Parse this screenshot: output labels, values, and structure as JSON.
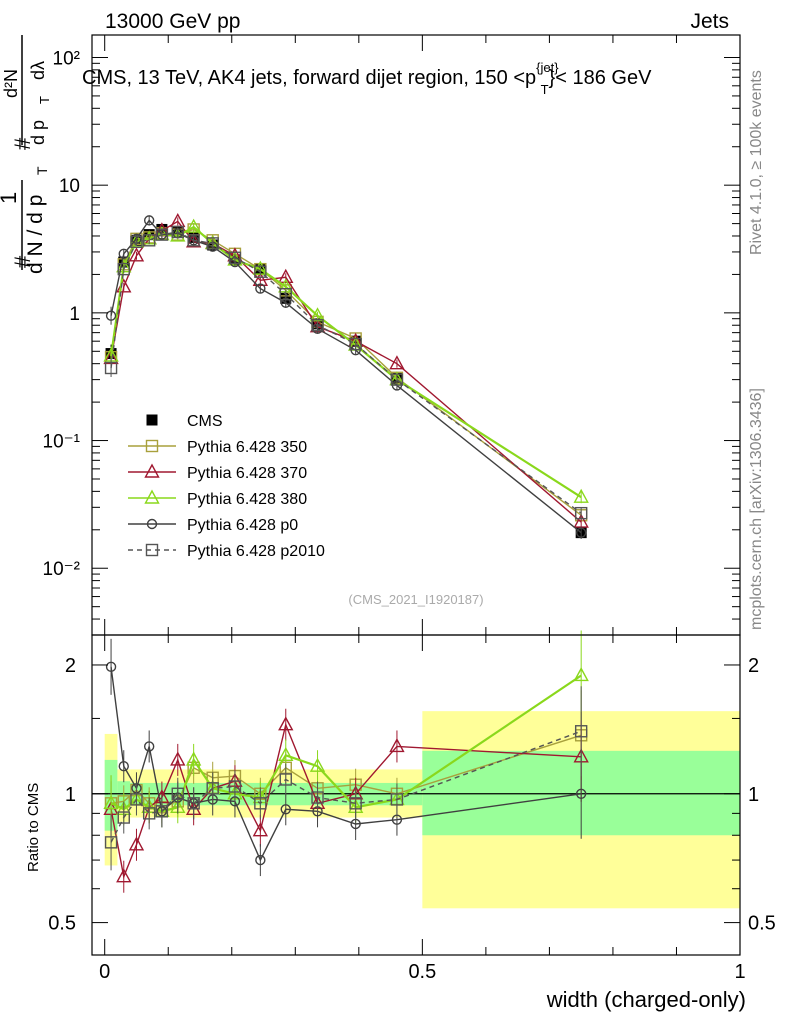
{
  "header": {
    "left": "13000 GeV pp",
    "right": "Jets",
    "title": "CMS, 13 TeV, AK4 jets, forward dijet region, 150 <p",
    "title_sup": "{jet}",
    "title_sub": "T",
    "title_end": "}< 186 GeV"
  },
  "side": {
    "rivet": "Rivet 4.1.0, ≥ 100k events",
    "mcplots": "mcplots.cern.ch [arXiv:1306.3436]"
  },
  "watermark": "(CMS_2021_I1920187)",
  "yaxis_main": {
    "hash1": "#",
    "n1": "1",
    "label1": "d N / d p",
    "label1_sub": "T",
    "hash2": "#",
    "num2": "d²N",
    "label2": "d p",
    "label2_sub": "T",
    "label2_end": "dλ"
  },
  "yaxis_ratio": "Ratio to CMS",
  "xaxis": "width (charged-only)",
  "chart_data": [
    {
      "type": "scatter",
      "panel": "main",
      "log_y": true,
      "xlim": [
        -0.02,
        1.0
      ],
      "ylim": [
        0.003,
        150
      ],
      "y_ticks": [
        "10²",
        "10",
        "1",
        "10⁻¹",
        "10⁻²"
      ],
      "x": [
        0.01,
        0.03,
        0.05,
        0.07,
        0.09,
        0.115,
        0.14,
        0.17,
        0.205,
        0.245,
        0.285,
        0.335,
        0.395,
        0.46,
        0.75
      ],
      "series": [
        {
          "name": "CMS",
          "color": "#000000",
          "marker": "filled-square",
          "line": "none",
          "values": [
            0.48,
            2.5,
            3.7,
            4.1,
            4.5,
            4.3,
            3.9,
            3.4,
            2.6,
            2.2,
            1.3,
            0.82,
            0.6,
            0.31,
            0.019
          ]
        },
        {
          "name": "Pythia 6.428 350",
          "color": "#a8a03c",
          "marker": "open-square",
          "line": "solid",
          "values": [
            0.45,
            2.4,
            3.8,
            3.9,
            4.2,
            4.1,
            4.5,
            3.7,
            2.9,
            2.2,
            1.5,
            0.85,
            0.63,
            0.31,
            0.026
          ]
        },
        {
          "name": "Pythia 6.428 370",
          "color": "#a01830",
          "marker": "open-triangle",
          "line": "solid",
          "values": [
            0.44,
            1.6,
            2.8,
            3.8,
            4.4,
            5.2,
            3.6,
            3.5,
            2.8,
            1.8,
            1.9,
            0.78,
            0.6,
            0.4,
            0.023
          ]
        },
        {
          "name": "Pythia 6.428 380",
          "color": "#8ad81c",
          "marker": "open-triangle",
          "line": "solid",
          "values": [
            0.46,
            2.3,
            3.6,
            3.8,
            4.1,
            4.0,
            4.7,
            3.5,
            2.6,
            2.2,
            1.6,
            0.95,
            0.56,
            0.3,
            0.036
          ]
        },
        {
          "name": "Pythia 6.428 p0",
          "color": "#404040",
          "marker": "open-circle",
          "line": "solid",
          "values": [
            0.95,
            2.9,
            3.8,
            5.3,
            4.1,
            4.2,
            3.7,
            3.3,
            2.5,
            1.55,
            1.2,
            0.75,
            0.51,
            0.27,
            0.019
          ]
        },
        {
          "name": "Pythia 6.428 p2010",
          "color": "#555555",
          "marker": "open-square",
          "line": "dashed",
          "values": [
            0.37,
            2.2,
            3.6,
            3.7,
            4.1,
            4.3,
            3.7,
            3.5,
            2.7,
            2.1,
            1.4,
            0.8,
            0.57,
            0.3,
            0.027
          ]
        }
      ]
    },
    {
      "type": "scatter",
      "panel": "ratio",
      "ylabel": "Ratio to CMS",
      "xlabel": "width (charged-only)",
      "xlim": [
        -0.02,
        1.0
      ],
      "ylim": [
        0.42,
        2.35
      ],
      "y_ticks": [
        0.5,
        1,
        2
      ],
      "x_ticks": [
        0,
        0.5,
        1
      ],
      "bands": [
        {
          "x0": 0.0,
          "x1": 0.02,
          "y_lo_yellow": 0.68,
          "y_hi_yellow": 1.38,
          "y_lo_green": 0.82,
          "y_hi_green": 1.2
        },
        {
          "x0": 0.02,
          "x1": 0.04,
          "y_lo_yellow": 0.86,
          "y_hi_yellow": 1.14,
          "y_lo_green": 0.93,
          "y_hi_green": 1.07
        },
        {
          "x0": 0.04,
          "x1": 0.5,
          "y_lo_yellow": 0.88,
          "y_hi_yellow": 1.14,
          "y_lo_green": 0.94,
          "y_hi_green": 1.06
        },
        {
          "x0": 0.5,
          "x1": 1.0,
          "y_lo_yellow": 0.54,
          "y_hi_yellow": 1.56,
          "y_lo_green": 0.8,
          "y_hi_green": 1.26
        }
      ],
      "series": [
        {
          "name": "Pythia 6.428 350",
          "values": [
            0.95,
            0.96,
            1.02,
            0.95,
            0.93,
            0.96,
            1.15,
            1.09,
            1.1,
            1.0,
            1.15,
            1.03,
            1.05,
            1.0,
            1.37
          ]
        },
        {
          "name": "Pythia 6.428 370",
          "values": [
            0.92,
            0.64,
            0.76,
            0.93,
            0.98,
            1.2,
            0.92,
            1.03,
            1.07,
            0.82,
            1.45,
            0.95,
            1.0,
            1.29,
            1.22
          ]
        },
        {
          "name": "Pythia 6.428 380",
          "values": [
            0.95,
            0.92,
            0.97,
            0.93,
            0.91,
            0.93,
            1.2,
            1.03,
            1.0,
            0.98,
            1.23,
            1.16,
            0.93,
            0.97,
            1.89
          ]
        },
        {
          "name": "Pythia 6.428 p0",
          "values": [
            1.98,
            1.16,
            1.03,
            1.29,
            0.91,
            0.98,
            0.95,
            0.97,
            0.96,
            0.7,
            0.92,
            0.91,
            0.85,
            0.87,
            1.0
          ]
        },
        {
          "name": "Pythia 6.428 p2010",
          "values": [
            0.77,
            0.88,
            0.97,
            0.9,
            0.91,
            1.0,
            0.95,
            1.03,
            1.04,
            0.95,
            1.08,
            0.98,
            0.95,
            0.97,
            1.4
          ]
        }
      ]
    }
  ]
}
